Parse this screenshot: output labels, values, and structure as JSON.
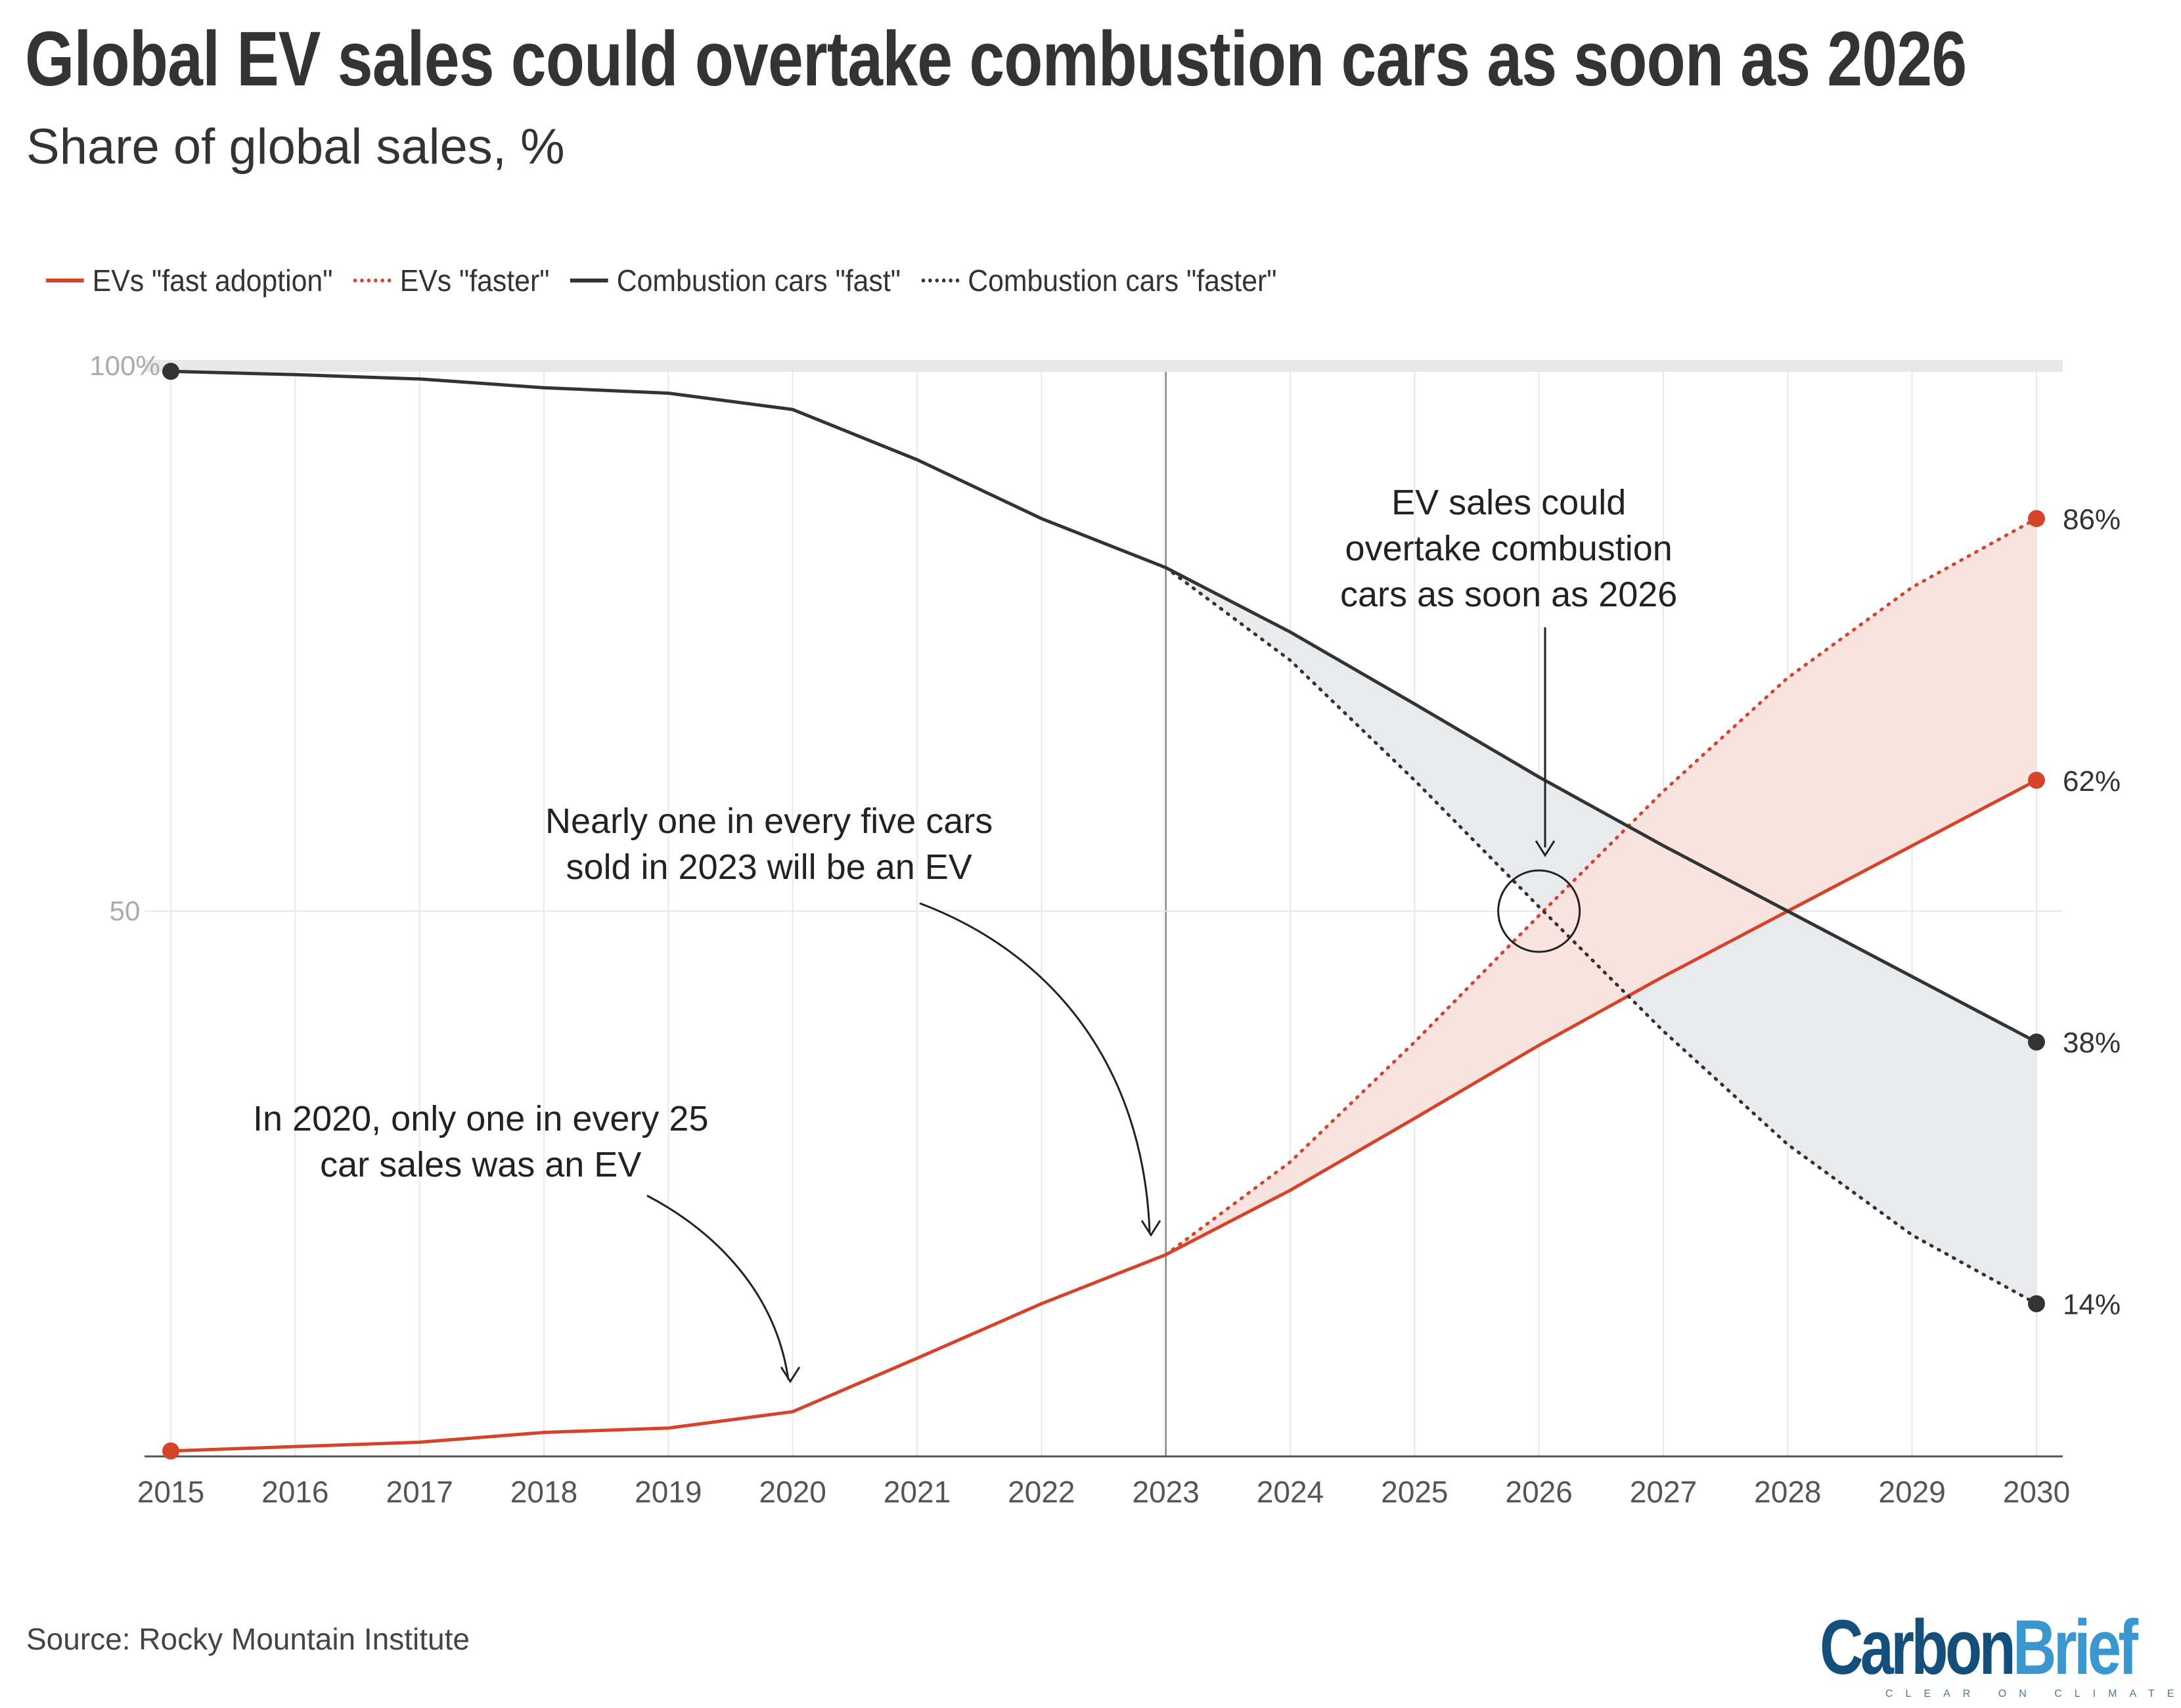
{
  "title": "Global EV sales could overtake combustion cars as soon as 2026",
  "subtitle": "Share of global sales, %",
  "source": "Source: Rocky Mountain Institute",
  "logo": {
    "word1": "Carbon",
    "word2": "Brief",
    "tagline": "CLEAR ON CLIMATE"
  },
  "colors": {
    "ev": "#d5432b",
    "combustion": "#333333",
    "ev_fill": "#f8e3df",
    "comb_fill": "#e9eaec",
    "grid": "#e8e8e8"
  },
  "chart_data": {
    "type": "line",
    "title": "Global EV sales could overtake combustion cars as soon as 2026",
    "ylabel": "Share of global sales, %",
    "x": [
      2015,
      2016,
      2017,
      2018,
      2019,
      2020,
      2021,
      2022,
      2023,
      2024,
      2025,
      2026,
      2027,
      2028,
      2029,
      2030
    ],
    "ylim": [
      0,
      100
    ],
    "yticks": [
      {
        "v": 100,
        "label": "100%"
      },
      {
        "v": 50,
        "label": "50"
      }
    ],
    "legend_position": "top-left",
    "series": [
      {
        "name": "EVs \"fast adoption\"",
        "style": "solid",
        "color": "#d5432b",
        "values": [
          0.5,
          0.9,
          1.3,
          2.2,
          2.6,
          4.1,
          9,
          14,
          18.5,
          24.4,
          31,
          37.7,
          44,
          50,
          56,
          62
        ]
      },
      {
        "name": "EVs \"faster\"",
        "style": "dotted",
        "color": "#d5432b",
        "values": [
          null,
          null,
          null,
          null,
          null,
          null,
          null,
          null,
          18.5,
          27,
          38,
          49.6,
          61,
          71.4,
          79.7,
          86
        ]
      },
      {
        "name": "Combustion cars \"fast\"",
        "style": "solid",
        "color": "#333333",
        "values": [
          99.5,
          99.2,
          98.8,
          98,
          97.5,
          96,
          91.4,
          86,
          81.5,
          75.6,
          69,
          62.3,
          56,
          50,
          44,
          38
        ]
      },
      {
        "name": "Combustion cars \"faster\"",
        "style": "dotted",
        "color": "#333333",
        "values": [
          null,
          null,
          null,
          null,
          null,
          null,
          null,
          null,
          81.5,
          73,
          62,
          50.4,
          39,
          28.6,
          20.3,
          14
        ]
      }
    ],
    "end_labels": [
      "86%",
      "62%",
      "38%",
      "14%"
    ],
    "annotations": [
      {
        "lines": [
          "EV sales could",
          "overtake combustion",
          "cars as soon as 2026"
        ]
      },
      {
        "lines": [
          "Nearly one in every five cars",
          "sold in 2023 will be an EV"
        ]
      },
      {
        "lines": [
          "In 2020, only one in every 25",
          "car sales was an EV"
        ]
      }
    ]
  }
}
